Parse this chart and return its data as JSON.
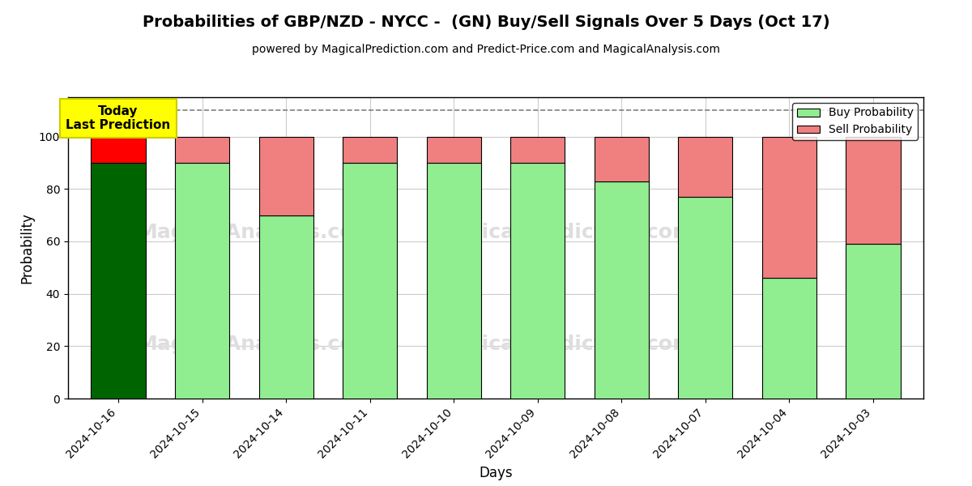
{
  "title": "Probabilities of GBP/NZD - NYCC -  (GN) Buy/Sell Signals Over 5 Days (Oct 17)",
  "subtitle": "powered by MagicalPrediction.com and Predict-Price.com and MagicalAnalysis.com",
  "xlabel": "Days",
  "ylabel": "Probability",
  "dates": [
    "2024-10-16",
    "2024-10-15",
    "2024-10-14",
    "2024-10-11",
    "2024-10-10",
    "2024-10-09",
    "2024-10-08",
    "2024-10-07",
    "2024-10-04",
    "2024-10-03"
  ],
  "buy_values": [
    90,
    90,
    70,
    90,
    90,
    90,
    83,
    77,
    46,
    59
  ],
  "sell_values": [
    10,
    10,
    30,
    10,
    10,
    10,
    17,
    23,
    54,
    41
  ],
  "buy_colors": [
    "#006400",
    "#90EE90",
    "#90EE90",
    "#90EE90",
    "#90EE90",
    "#90EE90",
    "#90EE90",
    "#90EE90",
    "#90EE90",
    "#90EE90"
  ],
  "sell_colors": [
    "#FF0000",
    "#F08080",
    "#F08080",
    "#F08080",
    "#F08080",
    "#F08080",
    "#F08080",
    "#F08080",
    "#F08080",
    "#F08080"
  ],
  "today_box_color": "#FFFF00",
  "today_label": "Today\nLast Prediction",
  "ylim": [
    0,
    115
  ],
  "yticks": [
    0,
    20,
    40,
    60,
    80,
    100
  ],
  "dashed_line_y": 110,
  "legend_buy_color": "#90EE90",
  "legend_sell_color": "#F08080",
  "bar_width": 0.65,
  "background_color": "#ffffff",
  "grid_color": "#cccccc",
  "title_fontsize": 14,
  "subtitle_fontsize": 10,
  "axis_label_fontsize": 12,
  "tick_fontsize": 10,
  "watermark_color": "#dedede"
}
